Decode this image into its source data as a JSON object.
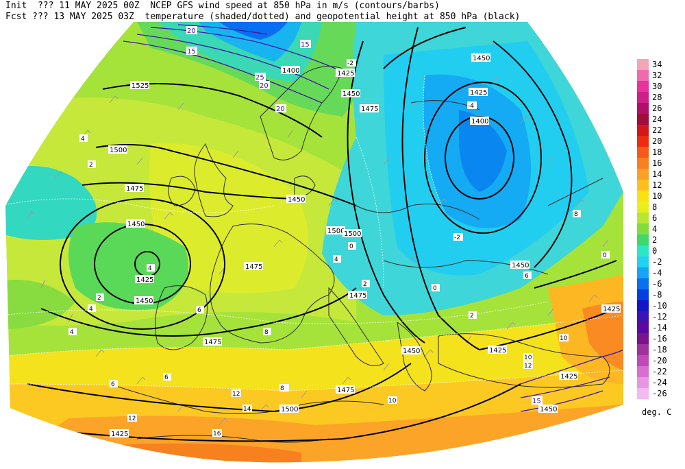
{
  "header": {
    "line1": "Init  ??? 11 MAY 2025 00Z  NCEP GFS wind speed at 850 hPa in m/s (contours/barbs)",
    "line2": "Fcst ??? 13 MAY 2025 03Z  temperature (shaded/dotted) and geopotential height at 850 hPa (black)"
  },
  "legend": {
    "units": "deg. C",
    "items": [
      {
        "label": "34",
        "color": "#f5a6b4"
      },
      {
        "label": "32",
        "color": "#f06ab0"
      },
      {
        "label": "30",
        "color": "#e8329e"
      },
      {
        "label": "28",
        "color": "#d01e8a"
      },
      {
        "label": "26",
        "color": "#b0106a"
      },
      {
        "label": "24",
        "color": "#a00c3c"
      },
      {
        "label": "22",
        "color": "#d01818"
      },
      {
        "label": "20",
        "color": "#f02a10"
      },
      {
        "label": "18",
        "color": "#f55a1a"
      },
      {
        "label": "16",
        "color": "#f98020"
      },
      {
        "label": "14",
        "color": "#fca028"
      },
      {
        "label": "12",
        "color": "#fdc020"
      },
      {
        "label": "10",
        "color": "#fde014"
      },
      {
        "label": "8",
        "color": "#e8ef1e"
      },
      {
        "label": "6",
        "color": "#b8e632"
      },
      {
        "label": "4",
        "color": "#82dc3c"
      },
      {
        "label": "2",
        "color": "#3fd870"
      },
      {
        "label": "0",
        "color": "#2ce6c8"
      },
      {
        "label": "-2",
        "color": "#20d2f0"
      },
      {
        "label": "-4",
        "color": "#14a6f5"
      },
      {
        "label": "-6",
        "color": "#0a70f0"
      },
      {
        "label": "-8",
        "color": "#0440e0"
      },
      {
        "label": "-10",
        "color": "#1414c8"
      },
      {
        "label": "-12",
        "color": "#3c14b4"
      },
      {
        "label": "-14",
        "color": "#5a0aa0"
      },
      {
        "label": "-16",
        "color": "#7a148c"
      },
      {
        "label": "-18",
        "color": "#a0329c"
      },
      {
        "label": "-20",
        "color": "#c04ab8"
      },
      {
        "label": "-22",
        "color": "#d86ed2"
      },
      {
        "label": "-24",
        "color": "#e896e2"
      },
      {
        "label": "-26",
        "color": "#f2baf0"
      }
    ]
  },
  "map": {
    "height_labels": [
      "1525",
      "1500",
      "1475",
      "1450",
      "1425",
      "1400",
      "1450",
      "1425",
      "1400",
      "1475",
      "1500",
      "1475",
      "1450",
      "1425",
      "1450",
      "1475",
      "1500",
      "1475",
      "1450",
      "1425",
      "1450",
      "1425",
      "1475",
      "1500",
      "1425",
      "1450",
      "1425",
      "1450"
    ],
    "temp_labels": [
      "4",
      "2",
      "4",
      "6",
      "8",
      "6",
      "4",
      "2",
      "0",
      "-2",
      "-4",
      "-2",
      "0",
      "2",
      "4",
      "6",
      "8",
      "10",
      "12",
      "14",
      "16",
      "12",
      "10",
      "8",
      "6",
      "12",
      "10",
      "4",
      "2",
      "0"
    ],
    "wind_labels": [
      "20",
      "15",
      "20",
      "25",
      "15",
      "20",
      "15"
    ]
  }
}
